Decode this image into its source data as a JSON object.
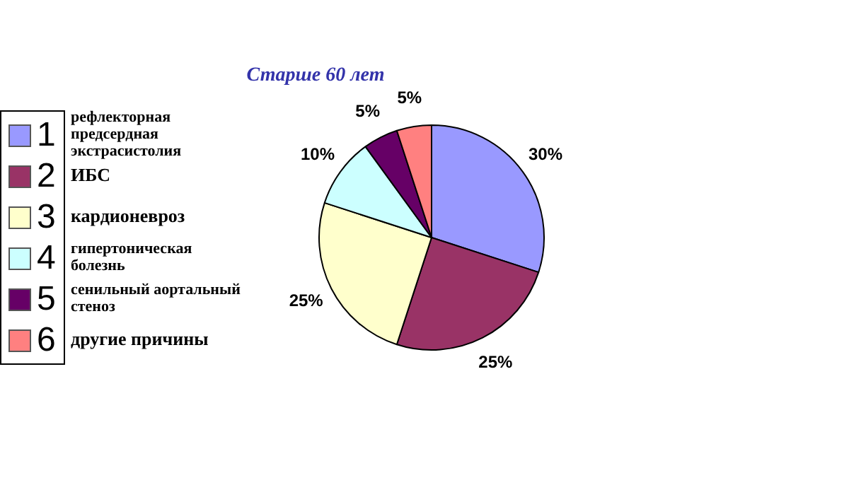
{
  "chart_data": {
    "type": "pie",
    "title": "Старше 60 лет",
    "categories": [
      "1",
      "2",
      "3",
      "4",
      "5",
      "6"
    ],
    "values": [
      30,
      25,
      25,
      10,
      5,
      5
    ],
    "value_labels": [
      "30%",
      "25%",
      "25%",
      "10%",
      "5%",
      "5%"
    ],
    "colors": [
      "#9999ff",
      "#993366",
      "#ffffcc",
      "#ccffff",
      "#660066",
      "#ff8080"
    ],
    "annotations": [
      "рефлекторная предсердная экстрасистолия",
      "ИБС",
      "кардионевроз",
      "гипертоническая болезнь",
      "сенильный аортальный стеноз",
      "другие причины"
    ],
    "legend": "left"
  }
}
